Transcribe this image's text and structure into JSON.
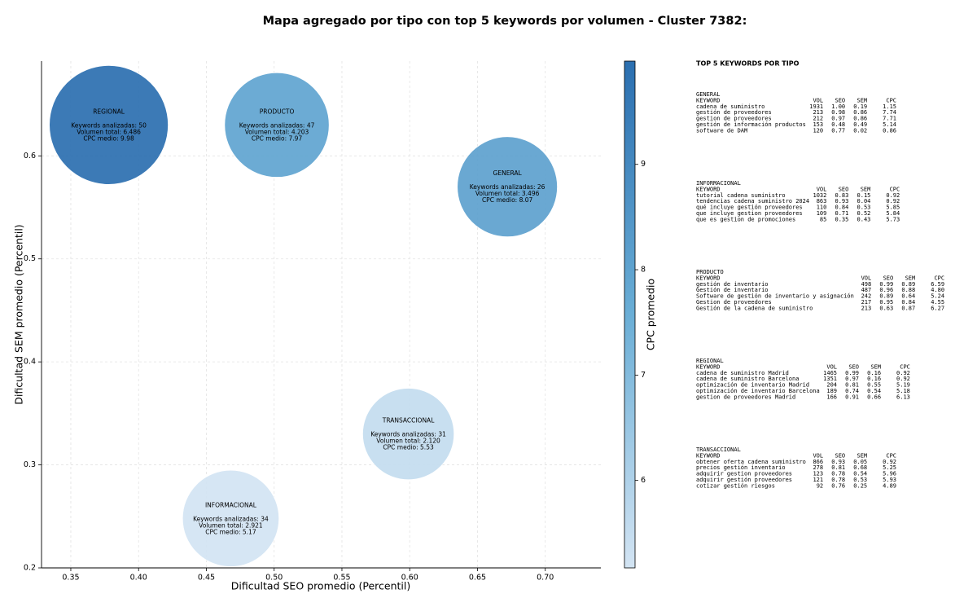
{
  "chart_data": {
    "type": "bubble",
    "title": "Mapa agregado por tipo con top 5 keywords por volumen - Cluster 7382:",
    "xlabel": "Dificultad SEO promedio (Percentil)",
    "ylabel": "Dificultad SEM promedio (Percentil)",
    "x": [
      0.378,
      0.502,
      0.672,
      0.599,
      0.468
    ],
    "values": [
      0.63,
      0.63,
      0.57,
      0.33,
      0.248
    ],
    "sizes": [
      6486,
      4203,
      3496,
      2120,
      2921
    ],
    "color_values": [
      9.98,
      7.97,
      8.07,
      5.53,
      5.17
    ],
    "labels": [
      [
        "REGIONAL",
        "Keywords analizadas: 50",
        "Volumen total: 6.486",
        "CPC medio: 9.98"
      ],
      [
        "PRODUCTO",
        "Keywords analizadas: 47",
        "Volumen total: 4.203",
        "CPC medio: 7.97"
      ],
      [
        "GENERAL",
        "Keywords analizadas: 26",
        "Volumen total: 3.496",
        "CPC medio: 8.07"
      ],
      [
        "TRANSACCIONAL",
        "Keywords analizadas: 31",
        "Volumen total: 2.120",
        "CPC medio: 5.53"
      ],
      [
        "INFORMACIONAL",
        "Keywords analizadas: 34",
        "Volumen total: 2.921",
        "CPC medio: 5.17"
      ]
    ],
    "xlim": [
      0.3284,
      0.741
    ],
    "xticks": [
      {
        "value": 0.35,
        "label": "0.35"
      },
      {
        "value": 0.4,
        "label": "0.40"
      },
      {
        "value": 0.45,
        "label": "0.45"
      },
      {
        "value": 0.5,
        "label": "0.50"
      },
      {
        "value": 0.55,
        "label": "0.55"
      },
      {
        "value": 0.6,
        "label": "0.60"
      },
      {
        "value": 0.65,
        "label": "0.65"
      },
      {
        "value": 0.7,
        "label": "0.70"
      }
    ],
    "ylim": [
      0.2,
      0.692
    ],
    "yticks": [
      0.2,
      0.3,
      0.4,
      0.5,
      0.6
    ],
    "grid": true,
    "colorbar_label": "CPC promedio",
    "clim": [
      5.17,
      9.98
    ],
    "cticks": [
      6,
      7,
      8,
      9
    ],
    "colormap": [
      "#d3e4f3",
      "#6aaed6",
      "#2b6fb0"
    ]
  },
  "panel": {
    "title": "TOP 5 KEYWORDS POR TIPO",
    "header": [
      "KEYWORD",
      "VOL",
      "SEO",
      "SEM",
      "CPC"
    ],
    "sections": [
      {
        "name": "GENERAL",
        "rows": [
          [
            "cadena de suministro",
            "1931",
            "1.00",
            "0.19",
            "1.15"
          ],
          [
            "gestión de proveedores",
            "213",
            "0.98",
            "0.86",
            "7.74"
          ],
          [
            "gestion de proveedores",
            "212",
            "0.97",
            "0.86",
            "7.71"
          ],
          [
            "gestión de información productos",
            "153",
            "0.48",
            "0.49",
            "5.14"
          ],
          [
            "software de DAM",
            "120",
            "0.77",
            "0.02",
            "0.86"
          ]
        ]
      },
      {
        "name": "INFORMACIONAL",
        "rows": [
          [
            "tutorial cadena suministro",
            "1032",
            "0.83",
            "0.15",
            "0.92"
          ],
          [
            "tendencias cadena suministro 2024",
            "863",
            "0.93",
            "0.04",
            "0.92"
          ],
          [
            "qué incluye gestión proveedores",
            "110",
            "0.84",
            "0.53",
            "5.85"
          ],
          [
            "que incluye gestion proveedores",
            "109",
            "0.71",
            "0.52",
            "5.84"
          ],
          [
            "que es gestion de promociones",
            "85",
            "0.35",
            "0.43",
            "5.73"
          ]
        ]
      },
      {
        "name": "PRODUCTO",
        "rows": [
          [
            "gestión de inventario",
            "498",
            "0.99",
            "0.89",
            "6.59"
          ],
          [
            "Gestión de inventario",
            "487",
            "0.96",
            "0.88",
            "4.80"
          ],
          [
            "Software de gestión de inventario y asignación",
            "242",
            "0.89",
            "0.64",
            "5.24"
          ],
          [
            "Gestion de proveedores",
            "217",
            "0.95",
            "0.84",
            "4.55"
          ],
          [
            "Gestión de la cadena de suministro",
            "213",
            "0.63",
            "0.87",
            "6.27"
          ]
        ]
      },
      {
        "name": "REGIONAL",
        "rows": [
          [
            "cadena de suministro Madrid",
            "1465",
            "0.99",
            "0.16",
            "0.92"
          ],
          [
            "cadena de suministro Barcelona",
            "1351",
            "0.97",
            "0.16",
            "0.92"
          ],
          [
            "optimización de inventario Madrid",
            "204",
            "0.81",
            "0.55",
            "5.19"
          ],
          [
            "optimización de inventario Barcelona",
            "189",
            "0.74",
            "0.54",
            "5.18"
          ],
          [
            "gestion de proveedores Madrid",
            "166",
            "0.91",
            "0.66",
            "6.13"
          ]
        ]
      },
      {
        "name": "TRANSACCIONAL",
        "rows": [
          [
            "obtener oferta cadena suministro",
            "866",
            "0.93",
            "0.05",
            "0.92"
          ],
          [
            "precios gestión inventario",
            "278",
            "0.81",
            "0.68",
            "5.25"
          ],
          [
            "adquirir gestion proveedores",
            "123",
            "0.78",
            "0.54",
            "5.96"
          ],
          [
            "adquirir gestión proveedores",
            "121",
            "0.78",
            "0.53",
            "5.93"
          ],
          [
            "cotizar gestión riesgos",
            "92",
            "0.76",
            "0.25",
            "4.89"
          ]
        ]
      }
    ]
  }
}
